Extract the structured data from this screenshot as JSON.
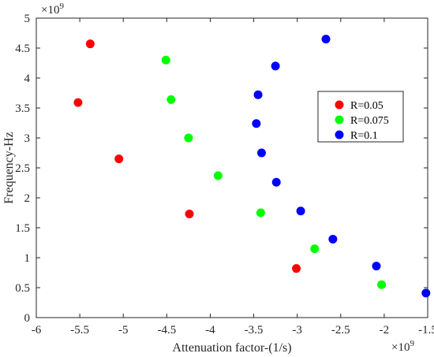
{
  "chart_data": {
    "type": "scatter",
    "xlabel": "Attenuation factor-(1/s)",
    "ylabel": "Frequency-Hz",
    "x_multiplier": "×10",
    "x_exponent": "9",
    "y_multiplier": "×10",
    "y_exponent": "9",
    "xlim": [
      -6,
      -1.5
    ],
    "ylim": [
      0,
      5
    ],
    "x_ticks": [
      "-6",
      "-5.5",
      "-5",
      "-4.5",
      "-4",
      "-3.5",
      "-3",
      "-2.5",
      "-2",
      "-1.5"
    ],
    "y_ticks": [
      "0",
      "0.5",
      "1",
      "1.5",
      "2",
      "2.5",
      "3",
      "3.5",
      "4",
      "4.5",
      "5"
    ],
    "grid": false,
    "legend_position": "right",
    "series": [
      {
        "name": "R=0.05",
        "color": "#ff0000",
        "points": [
          [
            -5.38,
            4.57
          ],
          [
            -5.52,
            3.59
          ],
          [
            -5.05,
            2.65
          ],
          [
            -4.24,
            1.73
          ],
          [
            -3.01,
            0.82
          ]
        ]
      },
      {
        "name": "R=0.075",
        "color": "#00ff00",
        "points": [
          [
            -4.51,
            4.3
          ],
          [
            -4.45,
            3.64
          ],
          [
            -4.25,
            3.0
          ],
          [
            -3.91,
            2.37
          ],
          [
            -3.42,
            1.75
          ],
          [
            -2.8,
            1.15
          ],
          [
            -2.03,
            0.55
          ]
        ]
      },
      {
        "name": "R=0.1",
        "color": "#0000ff",
        "points": [
          [
            -2.67,
            4.65
          ],
          [
            -3.25,
            4.2
          ],
          [
            -3.45,
            3.72
          ],
          [
            -3.47,
            3.24
          ],
          [
            -3.41,
            2.75
          ],
          [
            -3.24,
            2.26
          ],
          [
            -2.96,
            1.78
          ],
          [
            -2.59,
            1.31
          ],
          [
            -2.09,
            0.86
          ],
          [
            -1.52,
            0.41
          ]
        ]
      }
    ]
  }
}
